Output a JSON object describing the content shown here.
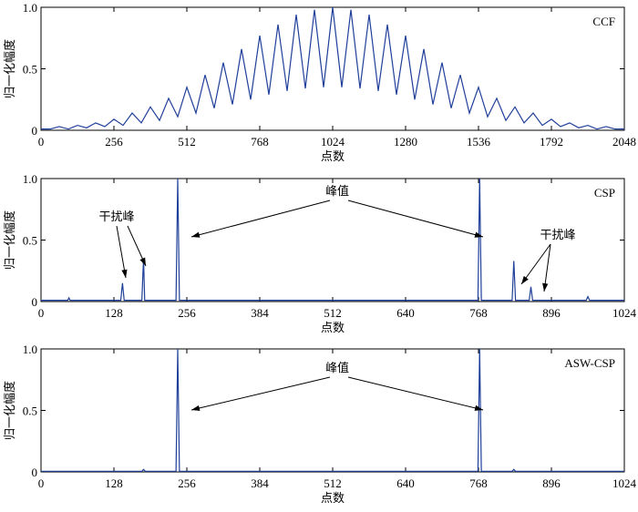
{
  "chart_data": [
    {
      "type": "line",
      "label": "CCF",
      "xlabel": "点数",
      "ylabel": "归一化幅度",
      "color": "#1f3f99",
      "xlim": [
        0,
        2048
      ],
      "ylim": [
        0,
        1
      ],
      "xticks": [
        0,
        256,
        512,
        768,
        1024,
        1280,
        1536,
        1792,
        2048
      ],
      "yticks": [
        0,
        0.5,
        {
          "value": 1,
          "label": "1.0"
        }
      ],
      "x": [
        0,
        32,
        64,
        96,
        128,
        160,
        192,
        224,
        256,
        288,
        320,
        352,
        384,
        416,
        448,
        480,
        512,
        544,
        576,
        608,
        640,
        672,
        704,
        736,
        768,
        800,
        832,
        864,
        896,
        928,
        960,
        992,
        1024,
        1056,
        1088,
        1120,
        1152,
        1184,
        1216,
        1248,
        1280,
        1312,
        1344,
        1376,
        1408,
        1440,
        1472,
        1504,
        1536,
        1568,
        1600,
        1632,
        1664,
        1696,
        1728,
        1760,
        1792,
        1824,
        1856,
        1888,
        1920,
        1952,
        1984,
        2016,
        2048
      ],
      "values": [
        0.01,
        0.01,
        0.03,
        0.01,
        0.04,
        0.02,
        0.06,
        0.03,
        0.09,
        0.04,
        0.14,
        0.06,
        0.19,
        0.08,
        0.26,
        0.11,
        0.35,
        0.14,
        0.45,
        0.18,
        0.55,
        0.21,
        0.66,
        0.25,
        0.77,
        0.29,
        0.86,
        0.32,
        0.94,
        0.34,
        0.98,
        0.35,
        1.0,
        0.35,
        0.98,
        0.34,
        0.94,
        0.32,
        0.86,
        0.29,
        0.77,
        0.25,
        0.66,
        0.21,
        0.55,
        0.18,
        0.45,
        0.14,
        0.35,
        0.11,
        0.26,
        0.08,
        0.19,
        0.06,
        0.14,
        0.04,
        0.09,
        0.03,
        0.06,
        0.02,
        0.04,
        0.01,
        0.03,
        0.01,
        0.01
      ]
    },
    {
      "type": "line",
      "label": "CSP",
      "xlabel": "点数",
      "ylabel": "归一化幅度",
      "color": "#1f3f99",
      "xlim": [
        0,
        1024
      ],
      "ylim": [
        0,
        1
      ],
      "xticks": [
        0,
        128,
        256,
        384,
        512,
        640,
        768,
        896,
        1024
      ],
      "yticks": [
        0,
        0.5,
        {
          "value": 1,
          "label": "1.0"
        }
      ],
      "x": [
        0,
        47,
        49,
        51,
        140,
        143,
        146,
        177,
        180,
        182,
        237,
        240,
        243,
        767,
        770,
        773,
        827,
        830,
        833,
        857,
        860,
        863,
        957,
        960,
        963,
        1024
      ],
      "values": [
        0.01,
        0.01,
        0.03,
        0.01,
        0.01,
        0.15,
        0.01,
        0.01,
        0.35,
        0.01,
        0.01,
        1.0,
        0.01,
        0.01,
        1.0,
        0.01,
        0.01,
        0.33,
        0.01,
        0.01,
        0.12,
        0.01,
        0.01,
        0.04,
        0.01,
        0.01
      ],
      "annotations": [
        "干扰峰",
        "干扰峰",
        "峰值"
      ]
    },
    {
      "type": "line",
      "label": "ASW-CSP",
      "xlabel": "点数",
      "ylabel": "归一化幅度",
      "color": "#1f3f99",
      "xlim": [
        0,
        1024
      ],
      "ylim": [
        0,
        1
      ],
      "xticks": [
        0,
        128,
        256,
        384,
        512,
        640,
        768,
        896,
        1024
      ],
      "yticks": [
        0,
        0.5,
        {
          "value": 1,
          "label": "1.0"
        }
      ],
      "x": [
        0,
        177,
        180,
        183,
        237,
        240,
        243,
        767,
        770,
        773,
        827,
        830,
        833,
        1024
      ],
      "values": [
        0.005,
        0.005,
        0.02,
        0.005,
        0.005,
        1.0,
        0.005,
        0.005,
        1.0,
        0.005,
        0.005,
        0.02,
        0.005,
        0.005
      ],
      "annotations": [
        "峰值"
      ]
    }
  ]
}
